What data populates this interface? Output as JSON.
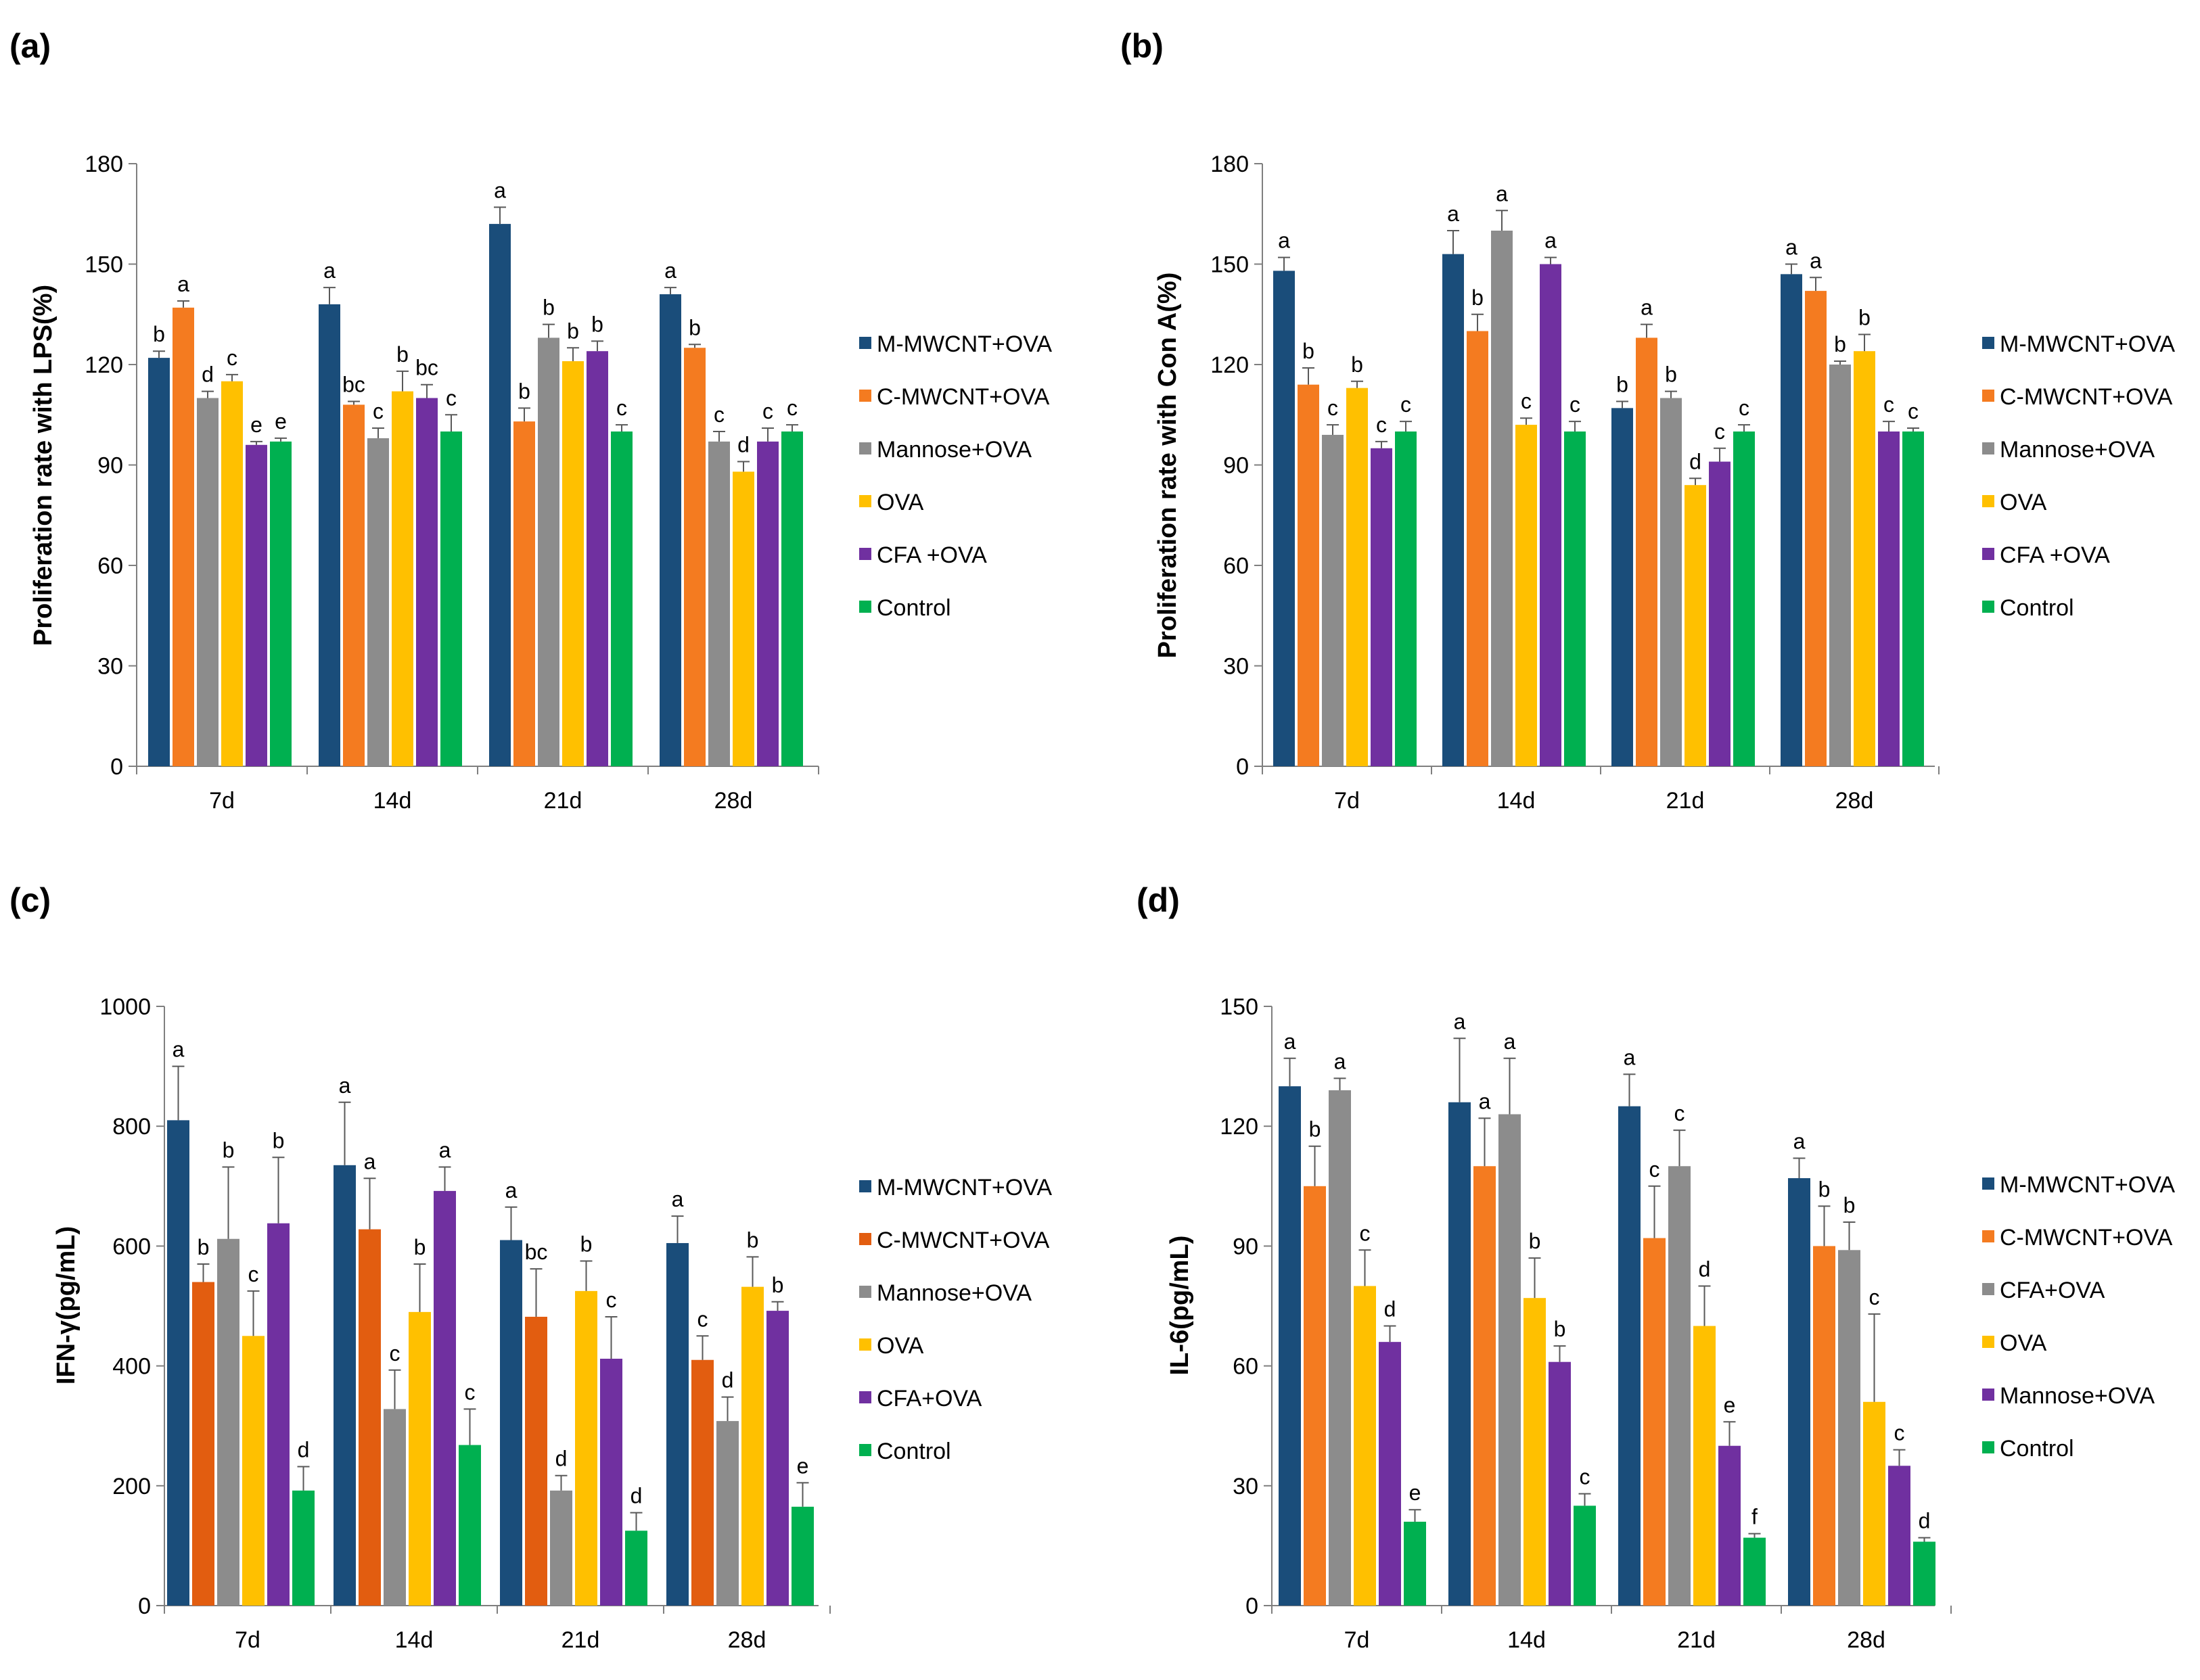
{
  "chart_data": [
    {
      "type": "bar",
      "panel_label": "(a)",
      "title": "",
      "xlabel": "",
      "ylabel": "Proliferation rate with LPS(%)",
      "ylim": [
        0,
        180
      ],
      "yticks": [
        "0",
        "30",
        "60",
        "90",
        "120",
        "150",
        "180"
      ],
      "grid": false,
      "legend_position": "right",
      "categories": [
        "7d",
        "14d",
        "21d",
        "28d"
      ],
      "series": [
        {
          "name": "M-MWCNT+OVA",
          "color": "#1a4d7a",
          "values": [
            122,
            138,
            162,
            141
          ],
          "errors": [
            2,
            5,
            5,
            2
          ],
          "sig": [
            "b",
            "a",
            "a",
            "a"
          ]
        },
        {
          "name": "C-MWCNT+OVA",
          "color": "#f47b20",
          "values": [
            137,
            108,
            103,
            125
          ],
          "errors": [
            2,
            1,
            4,
            1
          ],
          "sig": [
            "a",
            "bc",
            "b",
            "b"
          ]
        },
        {
          "name": "Mannose+OVA",
          "color": "#8c8c8c",
          "values": [
            110,
            98,
            128,
            97
          ],
          "errors": [
            2,
            3,
            4,
            3
          ],
          "sig": [
            "d",
            "c",
            "b",
            "c"
          ]
        },
        {
          "name": "OVA",
          "color": "#ffc000",
          "values": [
            115,
            112,
            121,
            88
          ],
          "errors": [
            2,
            6,
            4,
            3
          ],
          "sig": [
            "c",
            "b",
            "b",
            "d"
          ]
        },
        {
          "name": "CFA +OVA",
          "color": "#7030a0",
          "values": [
            96,
            110,
            124,
            97
          ],
          "errors": [
            1,
            4,
            3,
            4
          ],
          "sig": [
            "e",
            "bc",
            "b",
            "c"
          ]
        },
        {
          "name": "Control",
          "color": "#00b050",
          "values": [
            97,
            100,
            100,
            100
          ],
          "errors": [
            1,
            5,
            2,
            2
          ],
          "sig": [
            "e",
            "c",
            "c",
            "c"
          ]
        }
      ]
    },
    {
      "type": "bar",
      "panel_label": "(b)",
      "title": "",
      "xlabel": "",
      "ylabel": "Proliferation rate with Con A(%)",
      "ylim": [
        0,
        180
      ],
      "yticks": [
        "0",
        "30",
        "60",
        "90",
        "120",
        "150",
        "180"
      ],
      "grid": false,
      "legend_position": "right",
      "categories": [
        "7d",
        "14d",
        "21d",
        "28d"
      ],
      "series": [
        {
          "name": "M-MWCNT+OVA",
          "color": "#1a4d7a",
          "values": [
            148,
            153,
            107,
            147
          ],
          "errors": [
            4,
            7,
            2,
            3
          ],
          "sig": [
            "a",
            "a",
            "b",
            "a"
          ]
        },
        {
          "name": "C-MWCNT+OVA",
          "color": "#f47b20",
          "values": [
            114,
            130,
            128,
            142
          ],
          "errors": [
            5,
            5,
            4,
            4
          ],
          "sig": [
            "b",
            "b",
            "a",
            "a"
          ]
        },
        {
          "name": "Mannose+OVA",
          "color": "#8c8c8c",
          "values": [
            99,
            160,
            110,
            120
          ],
          "errors": [
            3,
            6,
            2,
            1
          ],
          "sig": [
            "c",
            "a",
            "b",
            "b"
          ]
        },
        {
          "name": "OVA",
          "color": "#ffc000",
          "values": [
            113,
            102,
            84,
            124
          ],
          "errors": [
            2,
            2,
            2,
            5
          ],
          "sig": [
            "b",
            "c",
            "d",
            "b"
          ]
        },
        {
          "name": "CFA +OVA",
          "color": "#7030a0",
          "values": [
            95,
            150,
            91,
            100
          ],
          "errors": [
            2,
            2,
            4,
            3
          ],
          "sig": [
            "c",
            "a",
            "c",
            "c"
          ]
        },
        {
          "name": "Control",
          "color": "#00b050",
          "values": [
            100,
            100,
            100,
            100
          ],
          "errors": [
            3,
            3,
            2,
            1
          ],
          "sig": [
            "c",
            "c",
            "c",
            "c"
          ]
        }
      ]
    },
    {
      "type": "bar",
      "panel_label": "(c)",
      "title": "",
      "xlabel": "",
      "ylabel": "IFN-γ(pg/mL)",
      "ylim": [
        0,
        1000
      ],
      "yticks": [
        "0",
        "200",
        "400",
        "600",
        "800",
        "1000"
      ],
      "grid": false,
      "legend_position": "right",
      "categories": [
        "7d",
        "14d",
        "21d",
        "28d"
      ],
      "series": [
        {
          "name": "M-MWCNT+OVA",
          "color": "#1a4d7a",
          "values": [
            810,
            735,
            610,
            605
          ],
          "errors": [
            90,
            105,
            55,
            45
          ],
          "sig": [
            "a",
            "a",
            "a",
            "a"
          ]
        },
        {
          "name": "C-MWCNT+OVA",
          "color": "#e25d10",
          "values": [
            540,
            628,
            482,
            410
          ],
          "errors": [
            30,
            85,
            80,
            40
          ],
          "sig": [
            "b",
            "a",
            "bc",
            "c"
          ]
        },
        {
          "name": "Mannose+OVA",
          "color": "#8c8c8c",
          "values": [
            612,
            328,
            192,
            308
          ],
          "errors": [
            120,
            65,
            25,
            40
          ],
          "sig": [
            "b",
            "c",
            "d",
            "d"
          ]
        },
        {
          "name": "OVA",
          "color": "#ffc000",
          "values": [
            450,
            490,
            525,
            532
          ],
          "errors": [
            75,
            80,
            50,
            50
          ],
          "sig": [
            "c",
            "b",
            "b",
            "b"
          ]
        },
        {
          "name": "CFA+OVA",
          "color": "#7030a0",
          "values": [
            638,
            692,
            412,
            492
          ],
          "errors": [
            110,
            40,
            70,
            15
          ],
          "sig": [
            "b",
            "a",
            "c",
            "b"
          ]
        },
        {
          "name": "Control",
          "color": "#00b050",
          "values": [
            192,
            268,
            125,
            165
          ],
          "errors": [
            40,
            60,
            30,
            40
          ],
          "sig": [
            "d",
            "c",
            "d",
            "e"
          ]
        }
      ]
    },
    {
      "type": "bar",
      "panel_label": "(d)",
      "title": "",
      "xlabel": "",
      "ylabel": "IL-6(pg/mL)",
      "ylim": [
        0,
        150
      ],
      "yticks": [
        "0",
        "30",
        "60",
        "90",
        "120",
        "150"
      ],
      "grid": false,
      "legend_position": "right",
      "categories": [
        "7d",
        "14d",
        "21d",
        "28d"
      ],
      "series": [
        {
          "name": "M-MWCNT+OVA",
          "color": "#1a4d7a",
          "values": [
            130,
            126,
            125,
            107
          ],
          "errors": [
            7,
            16,
            8,
            5
          ],
          "sig": [
            "a",
            "a",
            "a",
            "a"
          ]
        },
        {
          "name": "C-MWCNT+OVA",
          "color": "#f47b20",
          "values": [
            105,
            110,
            92,
            90
          ],
          "errors": [
            10,
            12,
            13,
            10
          ],
          "sig": [
            "b",
            "a",
            "c",
            "b"
          ]
        },
        {
          "name": "CFA+OVA",
          "color": "#8c8c8c",
          "values": [
            129,
            123,
            110,
            89
          ],
          "errors": [
            3,
            14,
            9,
            7
          ],
          "sig": [
            "a",
            "a",
            "c",
            "b"
          ]
        },
        {
          "name": "OVA",
          "color": "#ffc000",
          "values": [
            80,
            77,
            70,
            51
          ],
          "errors": [
            9,
            10,
            10,
            22
          ],
          "sig": [
            "c",
            "b",
            "d",
            "c"
          ]
        },
        {
          "name": "Mannose+OVA",
          "color": "#7030a0",
          "values": [
            66,
            61,
            40,
            35
          ],
          "errors": [
            4,
            4,
            6,
            4
          ],
          "sig": [
            "d",
            "b",
            "e",
            "c"
          ]
        },
        {
          "name": "Control",
          "color": "#00b050",
          "values": [
            21,
            25,
            17,
            16
          ],
          "errors": [
            3,
            3,
            1,
            1
          ],
          "sig": [
            "e",
            "c",
            "f",
            "d"
          ]
        }
      ]
    }
  ]
}
